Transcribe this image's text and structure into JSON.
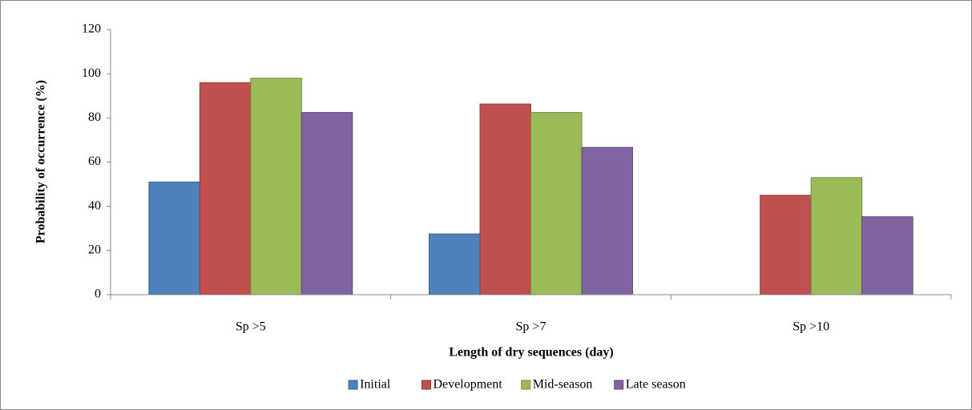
{
  "chart_data": {
    "type": "bar",
    "x_label": "Length of dry sequences (day)",
    "y_label": "Probability of occurrence (%)",
    "categories": [
      "Sp >5",
      "Sp >7",
      "Sp >10"
    ],
    "series": [
      {
        "name": "Initial",
        "color": "#4f81bd",
        "values": [
          51,
          27.5,
          0
        ]
      },
      {
        "name": "Development",
        "color": "#c0504d",
        "values": [
          96,
          86.3,
          45
        ]
      },
      {
        "name": "Mid-season",
        "color": "#9bbb59",
        "values": [
          98,
          82.5,
          53
        ]
      },
      {
        "name": "Late season",
        "color": "#8064a2",
        "values": [
          82.5,
          66.7,
          35.3
        ]
      }
    ],
    "ylim": [
      0,
      120
    ],
    "yticks": [
      0,
      20,
      40,
      60,
      80,
      100,
      120
    ],
    "grid": false,
    "legend": "bottom"
  }
}
